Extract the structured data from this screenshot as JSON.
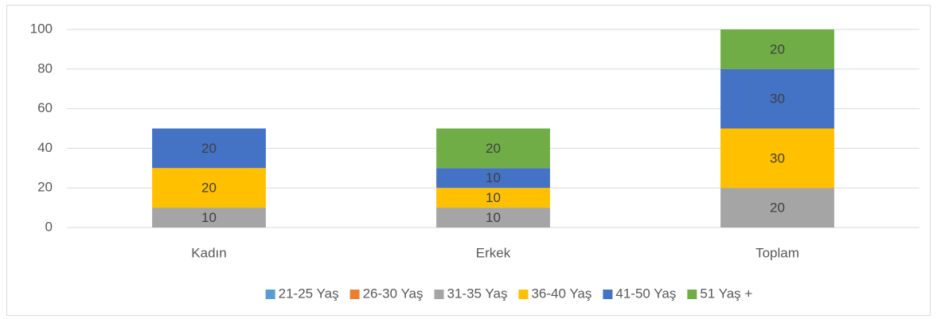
{
  "chart_data": {
    "type": "stacked_bar",
    "categories": [
      "Kadın",
      "Erkek",
      "Toplam"
    ],
    "series": [
      {
        "name": "21-25 Yaş",
        "color": "#5b9bd5",
        "values": [
          0,
          0,
          0
        ]
      },
      {
        "name": "26-30 Yaş",
        "color": "#ed7d31",
        "values": [
          0,
          0,
          0
        ]
      },
      {
        "name": "31-35 Yaş",
        "color": "#a5a5a5",
        "values": [
          10,
          10,
          20
        ]
      },
      {
        "name": "36-40 Yaş",
        "color": "#ffc000",
        "values": [
          20,
          10,
          30
        ]
      },
      {
        "name": "41-50 Yaş",
        "color": "#4472c4",
        "values": [
          20,
          10,
          30
        ]
      },
      {
        "name": "51 Yaş +",
        "color": "#70ad47",
        "values": [
          0,
          20,
          20
        ]
      }
    ],
    "ylim": [
      0,
      100
    ],
    "yticks": [
      0,
      20,
      40,
      60,
      80,
      100
    ],
    "grid": true,
    "legend": "bottom"
  }
}
